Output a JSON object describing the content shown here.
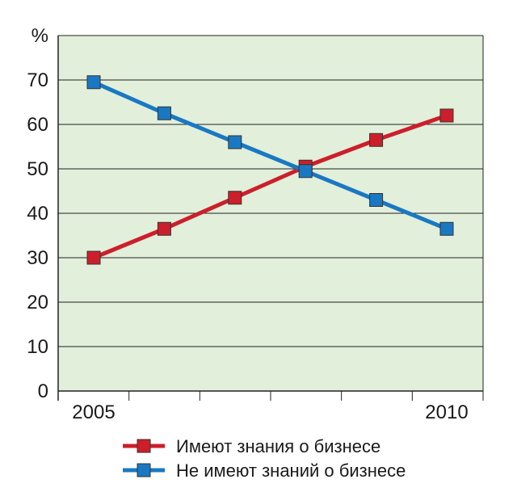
{
  "chart_data": {
    "type": "line",
    "title": "",
    "xlabel": "",
    "ylabel": "%",
    "x_tick_labels": [
      "2005",
      "2010"
    ],
    "y_ticks": [
      0,
      10,
      20,
      30,
      40,
      50,
      60,
      70
    ],
    "ylim": [
      0,
      80
    ],
    "points_per_series": 6,
    "grid": true,
    "legend": "bottom",
    "series": [
      {
        "name": "Имеют знания о бизнесе",
        "color": "#cc1f2b",
        "values": [
          30,
          36.5,
          43.5,
          50.5,
          56.5,
          62
        ]
      },
      {
        "name": "Не имеют знаний о бизнесе",
        "color": "#1a78c2",
        "values": [
          69.5,
          62.5,
          56,
          49.5,
          43,
          36.5
        ]
      }
    ],
    "plot_background": "#e2efdb"
  }
}
